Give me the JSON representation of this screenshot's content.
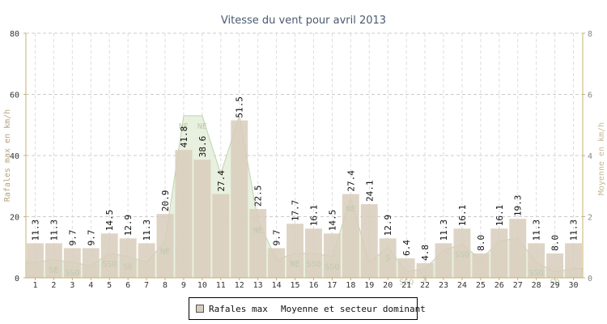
{
  "chart_data": {
    "type": "bar",
    "title": "Vitesse du vent pour avril 2013",
    "ylabel": "Rafales max en km/h",
    "y2label": "Moyenne en km/h",
    "ylim": [
      0,
      80
    ],
    "y2lim": [
      0,
      8
    ],
    "yticks": [
      0,
      20,
      40,
      60,
      80
    ],
    "y2ticks": [
      0,
      2,
      4,
      6,
      8
    ],
    "grid": true,
    "legend_position": "bottom",
    "categories": [
      "1",
      "2",
      "3",
      "4",
      "5",
      "6",
      "7",
      "8",
      "9",
      "10",
      "11",
      "12",
      "13",
      "14",
      "15",
      "16",
      "17",
      "18",
      "19",
      "20",
      "21",
      "22",
      "23",
      "24",
      "25",
      "26",
      "27",
      "28",
      "29",
      "30"
    ],
    "series": [
      {
        "name": "Rafales max",
        "type": "bar",
        "color": "#d8ccbc",
        "values": [
          11.3,
          11.3,
          9.7,
          9.7,
          14.5,
          12.9,
          11.3,
          20.9,
          41.8,
          38.6,
          27.4,
          51.5,
          22.5,
          9.7,
          17.7,
          16.1,
          14.5,
          27.4,
          24.1,
          12.9,
          6.4,
          4.8,
          11.3,
          16.1,
          8.0,
          16.1,
          19.3,
          11.3,
          8.0,
          11.3
        ],
        "labels": [
          "11.3",
          "11.3",
          "9.7",
          "9.7",
          "14.5",
          "12.9",
          "11.3",
          "20.9",
          "41.8",
          "38.6",
          "27.4",
          "51.5",
          "22.5",
          "9.7",
          "17.7",
          "16.1",
          "14.5",
          "27.4",
          "24.1",
          "12.9",
          "6.4",
          "4.8",
          "11.3",
          "16.1",
          "8.0",
          "16.1",
          "19.3",
          "11.3",
          "8.0",
          "11.3"
        ]
      },
      {
        "name": "Moyenne et secteur dominant",
        "type": "area",
        "color": "#c8dcb8",
        "values": [
          0.5,
          0.6,
          0.5,
          0.4,
          0.8,
          0.7,
          0.5,
          1.2,
          5.3,
          5.3,
          3.4,
          5.3,
          1.9,
          0.6,
          0.8,
          0.8,
          0.7,
          2.6,
          0.5,
          1.0,
          0.2,
          0.3,
          0.9,
          1.1,
          0.6,
          1.2,
          1.3,
          0.5,
          0.2,
          0.3
        ],
        "sectors": [
          "",
          "SE",
          "SSO",
          "",
          "SSO",
          "SE",
          "",
          "NE",
          "NE",
          "NE",
          "",
          "",
          "NE",
          "",
          "NE",
          "SSO",
          "SSO",
          "NE",
          "",
          "S",
          "SSO",
          "S",
          "",
          "SSO",
          "",
          "",
          "",
          "SSO",
          "SO",
          ""
        ]
      }
    ]
  }
}
